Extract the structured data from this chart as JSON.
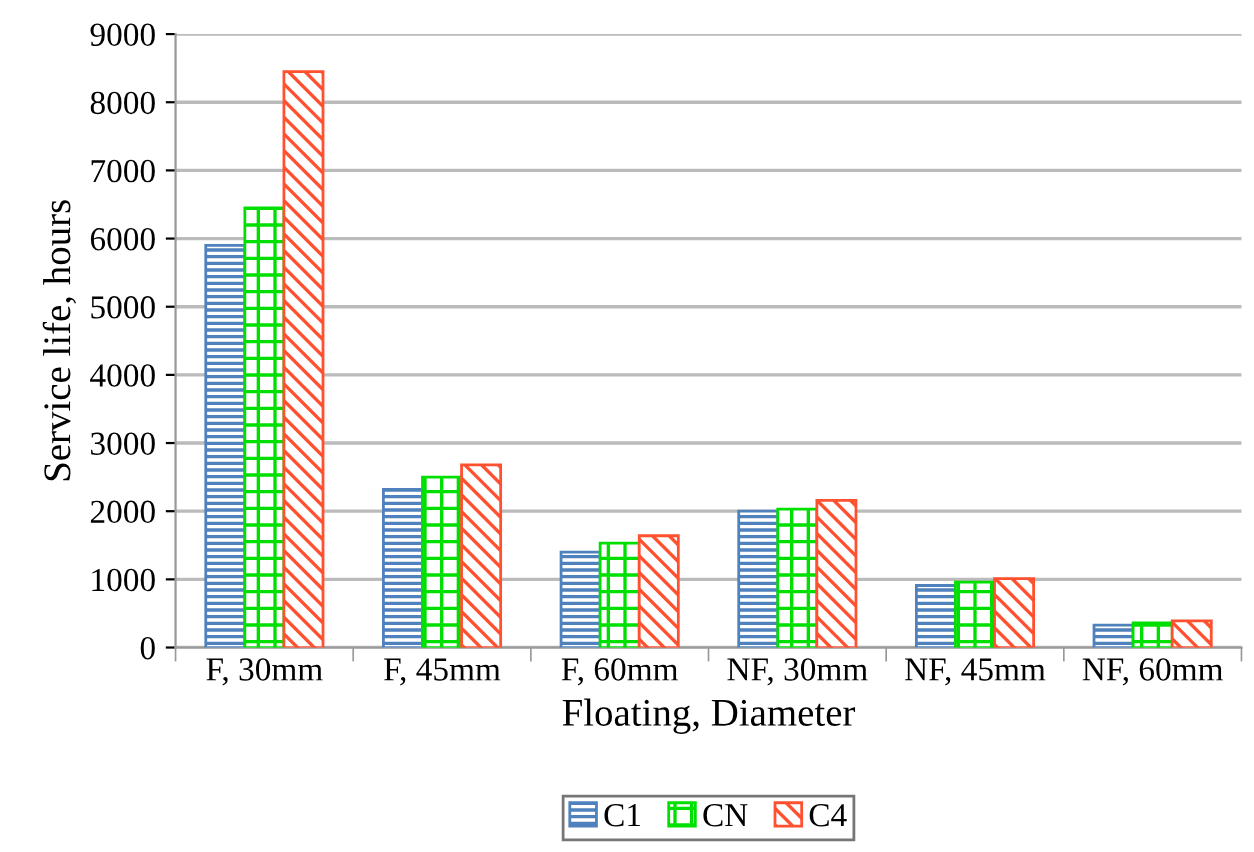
{
  "chart_data": {
    "type": "bar",
    "xlabel": "Floating, Diameter",
    "ylabel": "Service life, hours",
    "categories": [
      "F, 30mm",
      "F, 45mm",
      "F, 60mm",
      "NF, 30mm",
      "NF, 45mm",
      "NF, 60mm"
    ],
    "series": [
      {
        "name": "C1",
        "color": "#4f81bd",
        "values": [
          5900,
          2320,
          1400,
          2000,
          910,
          330
        ]
      },
      {
        "name": "CN",
        "color": "#00e000",
        "values": [
          6450,
          2500,
          1530,
          2030,
          960,
          360
        ]
      },
      {
        "name": "C4",
        "color": "#ff5030",
        "values": [
          8450,
          2680,
          1640,
          2160,
          1010,
          390
        ]
      }
    ],
    "ylim": [
      0,
      9000
    ],
    "yticks": [
      0,
      1000,
      2000,
      3000,
      4000,
      5000,
      6000,
      7000,
      8000,
      9000
    ],
    "grid": "y",
    "legend": "bottom"
  }
}
